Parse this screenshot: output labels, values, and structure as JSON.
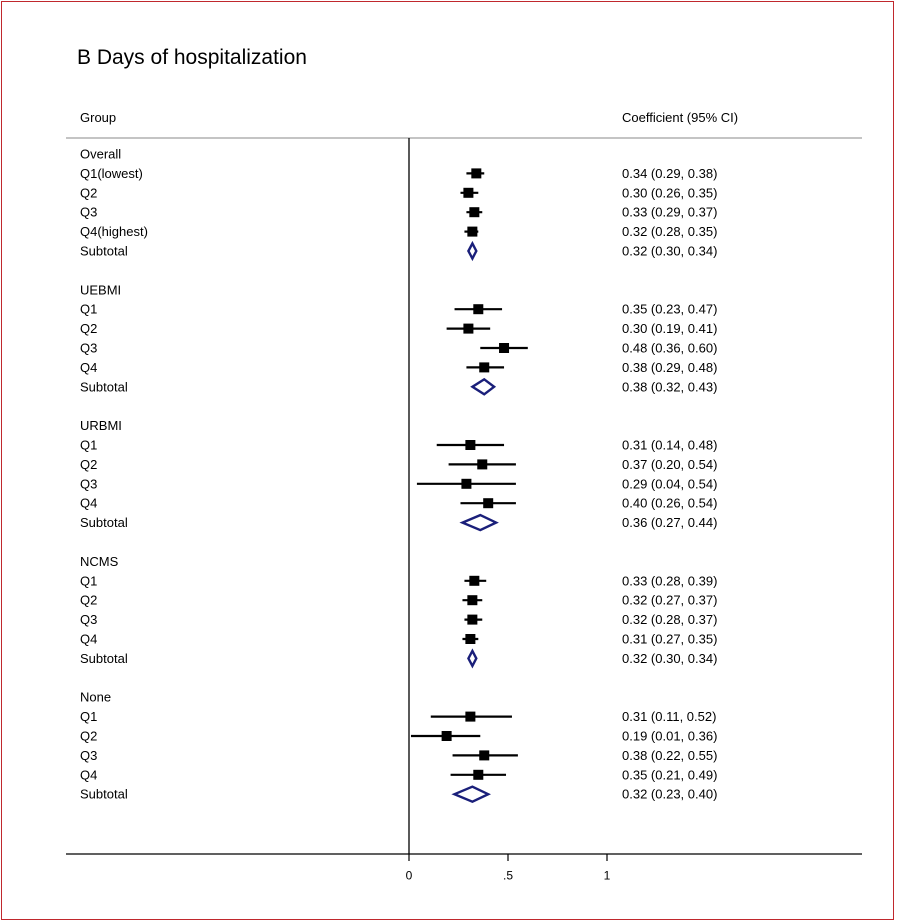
{
  "chart_data": {
    "type": "forest",
    "title": "B Days of hospitalization",
    "col_group": "Group",
    "col_ci": "Coefficient (95% CI)",
    "x_ticks": [
      {
        "value": 0,
        "label": "0"
      },
      {
        "value": 0.5,
        "label": ".5"
      },
      {
        "value": 1,
        "label": "1"
      }
    ],
    "xlim": [
      -1.7,
      2.25
    ],
    "colors": {
      "square": "#000000",
      "diamond": "#1a1f7a",
      "axis": "#000000",
      "separator": "#a0a0a0",
      "frame": "#c0282d"
    },
    "groups": [
      {
        "name": "Overall",
        "rows": [
          {
            "label": "Q1(lowest)",
            "est": 0.34,
            "lo": 0.29,
            "hi": 0.38,
            "text": "0.34 (0.29, 0.38)"
          },
          {
            "label": "Q2",
            "est": 0.3,
            "lo": 0.26,
            "hi": 0.35,
            "text": "0.30 (0.26, 0.35)"
          },
          {
            "label": "Q3",
            "est": 0.33,
            "lo": 0.29,
            "hi": 0.37,
            "text": "0.33 (0.29, 0.37)"
          },
          {
            "label": "Q4(highest)",
            "est": 0.32,
            "lo": 0.28,
            "hi": 0.35,
            "text": "0.32 (0.28, 0.35)"
          }
        ],
        "subtotal": {
          "label": "Subtotal",
          "est": 0.32,
          "lo": 0.3,
          "hi": 0.34,
          "text": "0.32 (0.30, 0.34)"
        }
      },
      {
        "name": "UEBMI",
        "rows": [
          {
            "label": "Q1",
            "est": 0.35,
            "lo": 0.23,
            "hi": 0.47,
            "text": "0.35 (0.23, 0.47)"
          },
          {
            "label": "Q2",
            "est": 0.3,
            "lo": 0.19,
            "hi": 0.41,
            "text": "0.30 (0.19, 0.41)"
          },
          {
            "label": "Q3",
            "est": 0.48,
            "lo": 0.36,
            "hi": 0.6,
            "text": "0.48 (0.36, 0.60)"
          },
          {
            "label": "Q4",
            "est": 0.38,
            "lo": 0.29,
            "hi": 0.48,
            "text": "0.38 (0.29, 0.48)"
          }
        ],
        "subtotal": {
          "label": "Subtotal",
          "est": 0.38,
          "lo": 0.32,
          "hi": 0.43,
          "text": "0.38 (0.32, 0.43)"
        }
      },
      {
        "name": "URBMI",
        "rows": [
          {
            "label": "Q1",
            "est": 0.31,
            "lo": 0.14,
            "hi": 0.48,
            "text": "0.31 (0.14, 0.48)"
          },
          {
            "label": "Q2",
            "est": 0.37,
            "lo": 0.2,
            "hi": 0.54,
            "text": "0.37 (0.20, 0.54)"
          },
          {
            "label": "Q3",
            "est": 0.29,
            "lo": 0.04,
            "hi": 0.54,
            "text": "0.29 (0.04, 0.54)"
          },
          {
            "label": "Q4",
            "est": 0.4,
            "lo": 0.26,
            "hi": 0.54,
            "text": "0.40 (0.26, 0.54)"
          }
        ],
        "subtotal": {
          "label": "Subtotal",
          "est": 0.36,
          "lo": 0.27,
          "hi": 0.44,
          "text": "0.36 (0.27, 0.44)"
        }
      },
      {
        "name": "NCMS",
        "rows": [
          {
            "label": "Q1",
            "est": 0.33,
            "lo": 0.28,
            "hi": 0.39,
            "text": "0.33 (0.28, 0.39)"
          },
          {
            "label": "Q2",
            "est": 0.32,
            "lo": 0.27,
            "hi": 0.37,
            "text": "0.32 (0.27, 0.37)"
          },
          {
            "label": "Q3",
            "est": 0.32,
            "lo": 0.28,
            "hi": 0.37,
            "text": "0.32 (0.28, 0.37)"
          },
          {
            "label": "Q4",
            "est": 0.31,
            "lo": 0.27,
            "hi": 0.35,
            "text": "0.31 (0.27, 0.35)"
          }
        ],
        "subtotal": {
          "label": "Subtotal",
          "est": 0.32,
          "lo": 0.3,
          "hi": 0.34,
          "text": "0.32 (0.30, 0.34)"
        }
      },
      {
        "name": "None",
        "rows": [
          {
            "label": "Q1",
            "est": 0.31,
            "lo": 0.11,
            "hi": 0.52,
            "text": "0.31 (0.11, 0.52)"
          },
          {
            "label": "Q2",
            "est": 0.19,
            "lo": 0.01,
            "hi": 0.36,
            "text": "0.19 (0.01, 0.36)"
          },
          {
            "label": "Q3",
            "est": 0.38,
            "lo": 0.22,
            "hi": 0.55,
            "text": "0.38 (0.22, 0.55)"
          },
          {
            "label": "Q4",
            "est": 0.35,
            "lo": 0.21,
            "hi": 0.49,
            "text": "0.35 (0.21, 0.49)"
          }
        ],
        "subtotal": {
          "label": "Subtotal",
          "est": 0.32,
          "lo": 0.23,
          "hi": 0.4,
          "text": "0.32 (0.23, 0.40)"
        }
      }
    ]
  }
}
